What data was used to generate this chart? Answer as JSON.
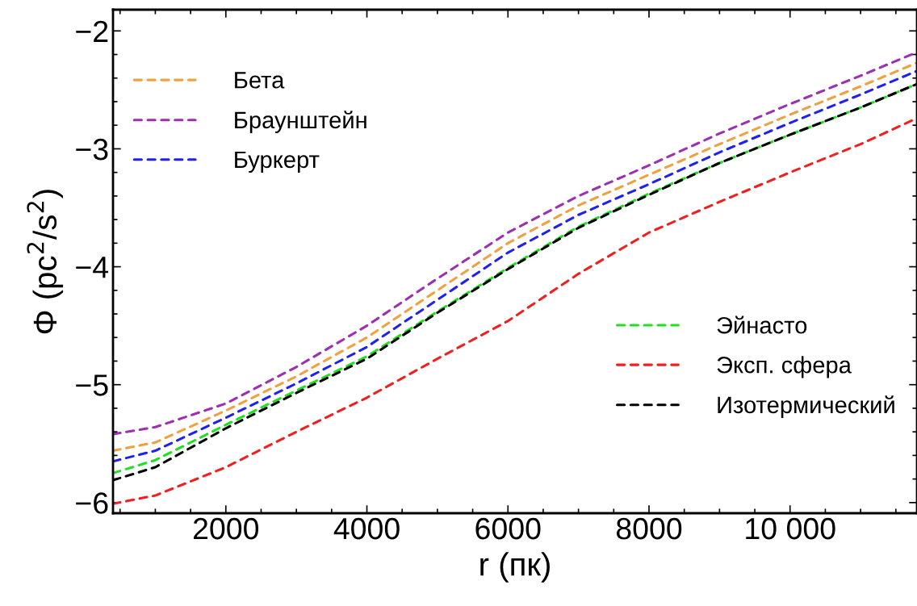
{
  "chart_data": {
    "type": "line",
    "xlabel": "r (пк)",
    "ylabel": "Φ (pc$^{2}$/s$^{2}$)",
    "x": [
      400,
      1000,
      2000,
      3000,
      4000,
      5000,
      6000,
      7000,
      8000,
      9000,
      10000,
      11000,
      11800
    ],
    "xlim": [
      400,
      11800
    ],
    "ylim": [
      -6.09,
      -1.82
    ],
    "xticks": [
      2000,
      4000,
      6000,
      8000,
      {
        "value": 10000,
        "label": "10 000"
      }
    ],
    "yticks": [
      {
        "value": -6,
        "label": "−6"
      },
      {
        "value": -5,
        "label": "−5"
      },
      {
        "value": -4,
        "label": "−4"
      },
      {
        "value": -3,
        "label": "−3"
      },
      {
        "value": -2,
        "label": "−2"
      }
    ],
    "line_style": "dashed",
    "marker": "none",
    "grid": false,
    "legend": [
      "top left",
      "center right"
    ],
    "series": [
      {
        "name": "Бета",
        "color": "#f0a040",
        "values": [
          -5.56,
          -5.49,
          -5.22,
          -4.93,
          -4.6,
          -4.2,
          -3.8,
          -3.48,
          -3.22,
          -2.96,
          -2.71,
          -2.47,
          -2.27
        ]
      },
      {
        "name": "Браунштейн",
        "color": "#9b30b0",
        "values": [
          -5.42,
          -5.36,
          -5.16,
          -4.85,
          -4.5,
          -4.1,
          -3.71,
          -3.4,
          -3.14,
          -2.87,
          -2.62,
          -2.38,
          -2.18
        ]
      },
      {
        "name": "Буркерт",
        "color": "#2020f0",
        "values": [
          -5.65,
          -5.56,
          -5.28,
          -4.99,
          -4.68,
          -4.28,
          -3.88,
          -3.56,
          -3.3,
          -3.03,
          -2.78,
          -2.54,
          -2.34
        ]
      },
      {
        "name": "Эйнасто",
        "color": "#20e020",
        "values": [
          -5.75,
          -5.64,
          -5.34,
          -5.05,
          -4.76,
          -4.38,
          -4.01,
          -3.66,
          -3.38,
          -3.12,
          -2.88,
          -2.65,
          -2.45
        ]
      },
      {
        "name": "Эксп. сфера",
        "color": "#f02020",
        "values": [
          -6.01,
          -5.94,
          -5.7,
          -5.4,
          -5.11,
          -4.78,
          -4.46,
          -4.06,
          -3.71,
          -3.45,
          -3.2,
          -2.96,
          -2.74
        ]
      },
      {
        "name": "Изотермический",
        "color": "#000000",
        "values": [
          -5.81,
          -5.7,
          -5.37,
          -5.07,
          -4.78,
          -4.39,
          -4.02,
          -3.67,
          -3.39,
          -3.12,
          -2.88,
          -2.65,
          -2.45
        ]
      }
    ]
  }
}
